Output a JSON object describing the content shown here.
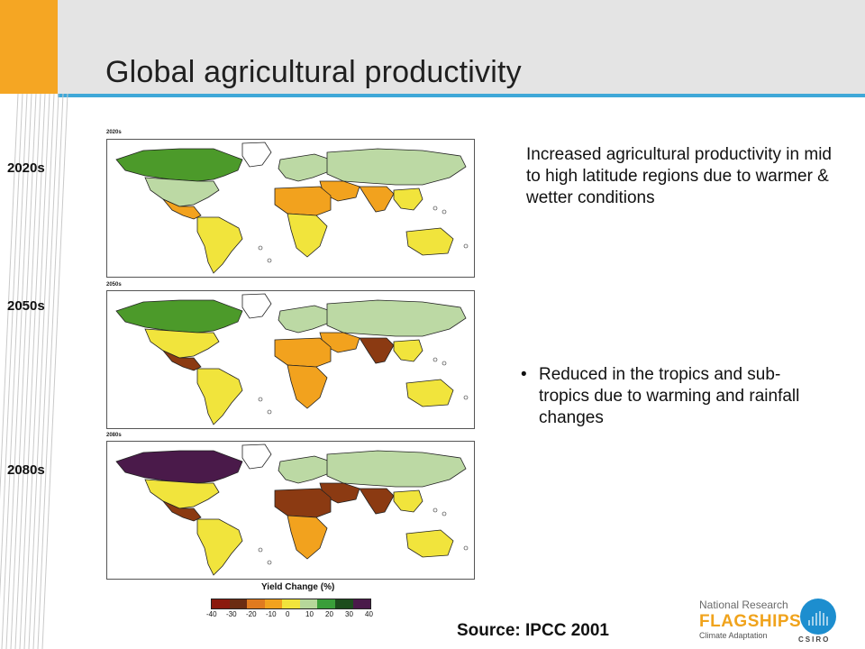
{
  "slide": {
    "title": "Global agricultural productivity",
    "periods": [
      {
        "label": "2020s",
        "map_tag": "2020s"
      },
      {
        "label": "2050s",
        "map_tag": "2050s"
      },
      {
        "label": "2080s",
        "map_tag": "2080s"
      }
    ],
    "text_block": "Increased agricultural productivity in mid to high latitude regions due to warmer & wetter conditions",
    "bullet": {
      "marker": "•",
      "text": "Reduced in the tropics and sub-tropics due to warming and rainfall changes"
    },
    "source": "Source: IPCC 2001"
  },
  "legend": {
    "title": "Yield Change (%)",
    "ticks": [
      "-40",
      "-30",
      "-20",
      "-10",
      "0",
      "10",
      "20",
      "30",
      "40"
    ],
    "colors": [
      "#8b1a0e",
      "#6b2c12",
      "#e07a1f",
      "#f2a21e",
      "#f1e43c",
      "#b6d79a",
      "#3a9e3a",
      "#1d4d1d",
      "#4a1a4a"
    ]
  },
  "maps": [
    {
      "name": "2020s",
      "colors": {
        "north_america": "#4c9a2a",
        "north_america_south": "#bcd9a4",
        "central_america": "#f2a21e",
        "south_america": "#f1e43c",
        "europe": "#bcd9a4",
        "asia_north": "#bcd9a4",
        "africa_north": "#f2a21e",
        "africa_south": "#f1e43c",
        "middle_east": "#f2a21e",
        "south_asia": "#f2a21e",
        "southeast_asia": "#f1e43c",
        "australia": "#f1e43c",
        "greenland": "#ffffff"
      }
    },
    {
      "name": "2050s",
      "colors": {
        "north_america": "#4c9a2a",
        "north_america_south": "#f1e43c",
        "central_america": "#8b3a12",
        "south_america": "#f1e43c",
        "europe": "#bcd9a4",
        "asia_north": "#bcd9a4",
        "africa_north": "#f2a21e",
        "africa_south": "#f2a21e",
        "middle_east": "#f2a21e",
        "south_asia": "#8b3a12",
        "southeast_asia": "#f1e43c",
        "australia": "#f1e43c",
        "greenland": "#ffffff"
      }
    },
    {
      "name": "2080s",
      "colors": {
        "north_america": "#4a1a4a",
        "north_america_south": "#f1e43c",
        "central_america": "#8b3a12",
        "south_america": "#f1e43c",
        "europe": "#bcd9a4",
        "asia_north": "#bcd9a4",
        "africa_north": "#8b3a12",
        "africa_south": "#f2a21e",
        "middle_east": "#8b3a12",
        "south_asia": "#8b3a12",
        "southeast_asia": "#f1e43c",
        "australia": "#f1e43c",
        "greenland": "#ffffff"
      }
    }
  ],
  "logo": {
    "line1": "National Research",
    "line2": "FLAGSHIPS",
    "line3": "Climate Adaptation",
    "org": "CSIRO"
  }
}
